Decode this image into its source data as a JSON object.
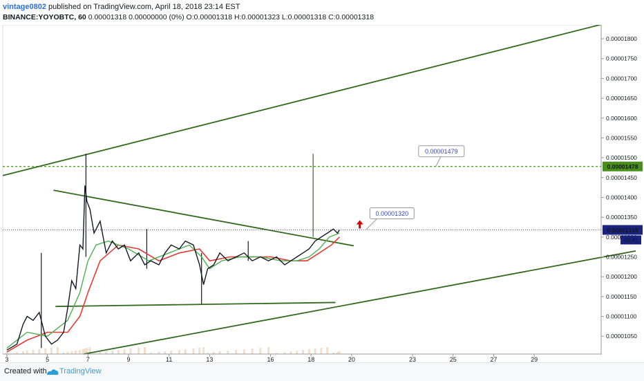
{
  "header": {
    "author": "vintage0802",
    "published": "published on TradingView.com, April 18, 2018 23:14 EST",
    "symbol": "BINANCE:YOYOBTC, 60",
    "ohlc": "0.00001318 0.00000000 (0%) O:0.00001318 H:0.00001323 L:0.00001318 C:0.00001318"
  },
  "footer": {
    "created_with": "Created with",
    "brand": "TradingView"
  },
  "colors": {
    "candle": "#131722",
    "ma_fast": "#4caf50",
    "ma_slow": "#e53935",
    "trend": "#33691e",
    "dotted_level": "#4a8f1e",
    "price_line": "#1a237e",
    "volume": "#e8c9a8",
    "label_text": "#3949ab",
    "arrow": "#d50000"
  },
  "chart_data": {
    "type": "line",
    "instrument": "BINANCE:YOYOBTC",
    "interval": "60",
    "y_axis_ticks": [
      "0.00001800",
      "0.00001750",
      "0.00001700",
      "0.00001650",
      "0.00001600",
      "0.00001550",
      "0.00001500",
      "0.00001450",
      "0.00001400",
      "0.00001350",
      "0.00001300",
      "0.00001250",
      "0.00001200",
      "0.00001150",
      "0.00001100",
      "0.00001050"
    ],
    "x_axis_ticks": [
      "3",
      "5",
      "7",
      "9",
      "11",
      "13",
      "16",
      "18",
      "20",
      "23",
      "25",
      "27",
      "29"
    ],
    "ylim": [
      1.005e-05,
      1.835e-05
    ],
    "last_price": "0.00001318",
    "countdown": "45:41",
    "level_price": "0.00001478",
    "level_callout": "0.00001479",
    "arrow_callout": "0.00001320",
    "price_series": [
      [
        3.0,
        1.015e-05
      ],
      [
        3.5,
        1.03e-05
      ],
      [
        3.8,
        1.08e-05
      ],
      [
        4.0,
        1.1e-05
      ],
      [
        4.3,
        1.09e-05
      ],
      [
        4.6,
        1.11e-05
      ],
      [
        4.9,
        1.05e-05
      ],
      [
        5.2,
        1.03e-05
      ],
      [
        5.5,
        1.04e-05
      ],
      [
        5.8,
        1.06e-05
      ],
      [
        6.0,
        1.12e-05
      ],
      [
        6.2,
        1.19e-05
      ],
      [
        6.4,
        1.17e-05
      ],
      [
        6.6,
        1.28e-05
      ],
      [
        6.75,
        1.27e-05
      ],
      [
        6.85,
        1.43e-05
      ],
      [
        6.95,
        1.39e-05
      ],
      [
        7.1,
        1.37e-05
      ],
      [
        7.3,
        1.31e-05
      ],
      [
        7.6,
        1.34e-05
      ],
      [
        7.9,
        1.26e-05
      ],
      [
        8.2,
        1.29e-05
      ],
      [
        8.5,
        1.27e-05
      ],
      [
        8.8,
        1.28e-05
      ],
      [
        9.1,
        1.24e-05
      ],
      [
        9.5,
        1.26e-05
      ],
      [
        9.8,
        1.23e-05
      ],
      [
        10.1,
        1.24e-05
      ],
      [
        10.5,
        1.23e-05
      ],
      [
        10.8,
        1.26e-05
      ],
      [
        11.1,
        1.28e-05
      ],
      [
        11.5,
        1.27e-05
      ],
      [
        11.8,
        1.29e-05
      ],
      [
        12.2,
        1.28e-05
      ],
      [
        12.5,
        1.23e-05
      ],
      [
        12.7,
        1.18e-05
      ],
      [
        12.9,
        1.22e-05
      ],
      [
        13.2,
        1.23e-05
      ],
      [
        13.5,
        1.26e-05
      ],
      [
        13.9,
        1.24e-05
      ],
      [
        14.3,
        1.25e-05
      ],
      [
        14.7,
        1.26e-05
      ],
      [
        15.1,
        1.24e-05
      ],
      [
        15.5,
        1.25e-05
      ],
      [
        15.9,
        1.24e-05
      ],
      [
        16.3,
        1.25e-05
      ],
      [
        16.7,
        1.23e-05
      ],
      [
        17.0,
        1.24e-05
      ],
      [
        17.3,
        1.25e-05
      ],
      [
        17.6,
        1.26e-05
      ],
      [
        17.9,
        1.27e-05
      ],
      [
        18.2,
        1.29e-05
      ],
      [
        18.5,
        1.3e-05
      ],
      [
        18.8,
        1.31e-05
      ],
      [
        19.1,
        1.32e-05
      ],
      [
        19.3,
        1.31e-05
      ],
      [
        19.4,
        1.318e-05
      ]
    ],
    "ma_fast": [
      [
        3.0,
        1.02e-05
      ],
      [
        4.0,
        1.06e-05
      ],
      [
        5.0,
        1.05e-05
      ],
      [
        6.0,
        1.09e-05
      ],
      [
        6.6,
        1.16e-05
      ],
      [
        7.0,
        1.24e-05
      ],
      [
        7.4,
        1.28e-05
      ],
      [
        8.0,
        1.29e-05
      ],
      [
        9.0,
        1.27e-05
      ],
      [
        10.0,
        1.24e-05
      ],
      [
        11.0,
        1.26e-05
      ],
      [
        12.0,
        1.28e-05
      ],
      [
        12.6,
        1.25e-05
      ],
      [
        13.0,
        1.22e-05
      ],
      [
        13.6,
        1.24e-05
      ],
      [
        14.5,
        1.25e-05
      ],
      [
        15.5,
        1.25e-05
      ],
      [
        16.5,
        1.24e-05
      ],
      [
        17.3,
        1.24e-05
      ],
      [
        17.9,
        1.25e-05
      ],
      [
        18.4,
        1.27e-05
      ],
      [
        18.9,
        1.3e-05
      ],
      [
        19.4,
        1.31e-05
      ]
    ],
    "ma_slow": [
      [
        3.0,
        1.01e-05
      ],
      [
        4.0,
        1.04e-05
      ],
      [
        5.0,
        1.06e-05
      ],
      [
        6.0,
        1.06e-05
      ],
      [
        6.6,
        1.1e-05
      ],
      [
        7.0,
        1.16e-05
      ],
      [
        7.6,
        1.24e-05
      ],
      [
        8.5,
        1.28e-05
      ],
      [
        9.5,
        1.27e-05
      ],
      [
        10.5,
        1.24e-05
      ],
      [
        11.5,
        1.26e-05
      ],
      [
        12.5,
        1.27e-05
      ],
      [
        13.0,
        1.24e-05
      ],
      [
        14.0,
        1.25e-05
      ],
      [
        15.0,
        1.25e-05
      ],
      [
        16.0,
        1.25e-05
      ],
      [
        17.0,
        1.24e-05
      ],
      [
        17.8,
        1.24e-05
      ],
      [
        18.4,
        1.26e-05
      ],
      [
        19.0,
        1.28e-05
      ],
      [
        19.4,
        1.3e-05
      ]
    ],
    "spikes": [
      {
        "x": 4.7,
        "low": 1.02e-05,
        "high": 1.26e-05
      },
      {
        "x": 6.9,
        "low": 1.25e-05,
        "high": 1.51e-05
      },
      {
        "x": 9.9,
        "low": 1.22e-05,
        "high": 1.32e-05
      },
      {
        "x": 12.6,
        "low": 1.13e-05,
        "high": 1.26e-05
      },
      {
        "x": 14.9,
        "low": 1.24e-05,
        "high": 1.29e-05
      },
      {
        "x": 18.1,
        "low": 1.3e-05,
        "high": 1.51e-05
      }
    ],
    "lines": [
      {
        "x1": 2.8,
        "y1": 1.455e-05,
        "x2": 32.3,
        "y2": 1.836e-05
      },
      {
        "x1": 6.8,
        "y1": 1.005e-05,
        "x2": 34.0,
        "y2": 1.265e-05
      },
      {
        "x1": 5.3,
        "y1": 1.418e-05,
        "x2": 20.1,
        "y2": 1.278e-05
      },
      {
        "x1": 5.4,
        "y1": 1.125e-05,
        "x2": 19.2,
        "y2": 1.135e-05
      }
    ]
  }
}
